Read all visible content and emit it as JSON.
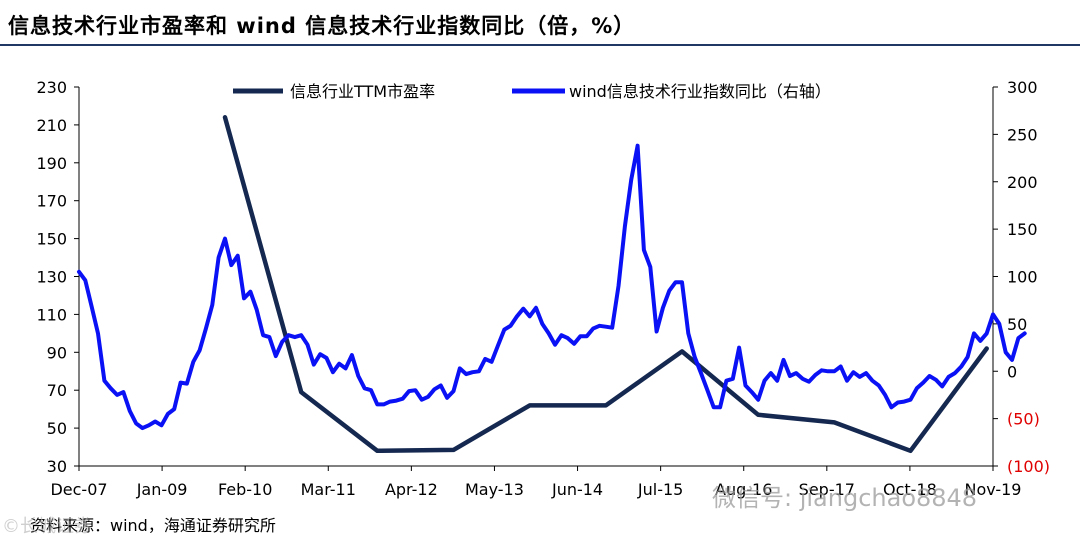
{
  "title": "信息技术行业市盈率和 wind 信息技术行业指数同比（倍，%）",
  "source": "资料来源：wind，海通证券研究所",
  "watermark": "微信号: jiangchao8848",
  "watermark_left": "©长城证券",
  "colors": {
    "pe": "#142850",
    "yoy": "#0a12f5",
    "negative": "#e00000",
    "rule": "#1f3864"
  },
  "chart_data": {
    "type": "line",
    "title": "信息技术行业市盈率和 wind 信息技术行业指数同比（倍，%）",
    "x_tick_labels": [
      "Dec-07",
      "Jan-09",
      "Feb-10",
      "Mar-11",
      "Apr-12",
      "May-13",
      "Jun-14",
      "Jul-15",
      "Aug-16",
      "Sep-17",
      "Oct-18",
      "Nov-19"
    ],
    "x_range": [
      0,
      144
    ],
    "left_axis": {
      "ticks": [
        30,
        50,
        70,
        90,
        110,
        130,
        150,
        170,
        190,
        210,
        230
      ],
      "tick_labels": [
        "30",
        "50",
        "70",
        "90",
        "110",
        "130",
        "150",
        "170",
        "190",
        "210",
        "230"
      ],
      "range": [
        30,
        230
      ]
    },
    "right_axis": {
      "ticks": [
        -100,
        -50,
        0,
        50,
        100,
        150,
        200,
        250,
        300
      ],
      "tick_labels": [
        "(100)",
        "(50)",
        "0",
        "50",
        "100",
        "150",
        "200",
        "250",
        "300"
      ],
      "range": [
        -100,
        300
      ]
    },
    "legend": {
      "placement": "top",
      "entries": [
        "信息行业TTM市盈率",
        "wind信息技术行业指数同比（右轴）"
      ]
    },
    "series": [
      {
        "name": "信息行业TTM市盈率",
        "axis": "left",
        "color": "#142850",
        "points": [
          [
            23,
            214
          ],
          [
            35,
            69
          ],
          [
            47,
            38
          ],
          [
            59,
            38.5
          ],
          [
            71,
            62
          ],
          [
            83,
            62
          ],
          [
            95,
            90.5
          ],
          [
            107,
            57
          ],
          [
            119,
            53
          ],
          [
            131,
            38
          ],
          [
            143,
            92
          ]
        ]
      },
      {
        "name": "wind信息技术行业指数同比（右轴）",
        "axis": "right",
        "color": "#0a12f5",
        "points": [
          [
            0,
            105
          ],
          [
            1,
            96
          ],
          [
            2,
            68
          ],
          [
            3,
            40
          ],
          [
            4,
            -10
          ],
          [
            5,
            -18
          ],
          [
            6,
            -25
          ],
          [
            7,
            -22
          ],
          [
            8,
            -42
          ],
          [
            9,
            -55
          ],
          [
            10,
            -60
          ],
          [
            11,
            -57
          ],
          [
            12,
            -53
          ],
          [
            13,
            -57
          ],
          [
            14,
            -45
          ],
          [
            15,
            -40
          ],
          [
            16,
            -12
          ],
          [
            17,
            -13
          ],
          [
            18,
            10
          ],
          [
            19,
            22
          ],
          [
            20,
            45
          ],
          [
            21,
            70
          ],
          [
            22,
            120
          ],
          [
            23,
            140
          ],
          [
            24,
            112
          ],
          [
            25,
            122
          ],
          [
            26,
            77
          ],
          [
            27,
            84
          ],
          [
            28,
            65
          ],
          [
            29,
            38
          ],
          [
            30,
            36
          ],
          [
            31,
            16
          ],
          [
            32,
            31
          ],
          [
            33,
            38
          ],
          [
            34,
            36
          ],
          [
            35,
            38
          ],
          [
            36,
            28
          ],
          [
            37,
            7
          ],
          [
            38,
            18
          ],
          [
            39,
            14
          ],
          [
            40,
            -1
          ],
          [
            41,
            8
          ],
          [
            42,
            3
          ],
          [
            43,
            17
          ],
          [
            44,
            -5
          ],
          [
            45,
            -18
          ],
          [
            46,
            -20
          ],
          [
            47,
            -35
          ],
          [
            48,
            -35
          ],
          [
            49,
            -32
          ],
          [
            50,
            -31
          ],
          [
            51,
            -29
          ],
          [
            52,
            -21
          ],
          [
            53,
            -20
          ],
          [
            54,
            -30
          ],
          [
            55,
            -27
          ],
          [
            56,
            -19
          ],
          [
            57,
            -15
          ],
          [
            58,
            -28
          ],
          [
            59,
            -21
          ],
          [
            60,
            3
          ],
          [
            61,
            -3
          ],
          [
            62,
            -1
          ],
          [
            63,
            0
          ],
          [
            64,
            13
          ],
          [
            65,
            10
          ],
          [
            66,
            27
          ],
          [
            67,
            44
          ],
          [
            68,
            48
          ],
          [
            69,
            58
          ],
          [
            70,
            66
          ],
          [
            71,
            58
          ],
          [
            72,
            67
          ],
          [
            73,
            50
          ],
          [
            74,
            40
          ],
          [
            75,
            28
          ],
          [
            76,
            38
          ],
          [
            77,
            35
          ],
          [
            78,
            29
          ],
          [
            79,
            37
          ],
          [
            80,
            37
          ],
          [
            81,
            45
          ],
          [
            82,
            48
          ],
          [
            83,
            47
          ],
          [
            84,
            46
          ],
          [
            85,
            90
          ],
          [
            86,
            153
          ],
          [
            87,
            202
          ],
          [
            88,
            238
          ],
          [
            89,
            128
          ],
          [
            90,
            110
          ],
          [
            91,
            42
          ],
          [
            92,
            67
          ],
          [
            93,
            85
          ],
          [
            94,
            94
          ],
          [
            95,
            94
          ],
          [
            96,
            40
          ],
          [
            97,
            15
          ],
          [
            98,
            -2
          ],
          [
            99,
            -20
          ],
          [
            100,
            -38
          ],
          [
            101,
            -38
          ],
          [
            102,
            -10
          ],
          [
            103,
            -8
          ],
          [
            104,
            25
          ],
          [
            105,
            -15
          ],
          [
            106,
            -22
          ],
          [
            107,
            -30
          ],
          [
            108,
            -10
          ],
          [
            109,
            -2
          ],
          [
            110,
            -10
          ],
          [
            111,
            12
          ],
          [
            112,
            -5
          ],
          [
            113,
            -2
          ],
          [
            114,
            -8
          ],
          [
            115,
            -11
          ],
          [
            116,
            -4
          ],
          [
            117,
            1
          ],
          [
            118,
            0
          ],
          [
            119,
            0
          ],
          [
            120,
            5
          ],
          [
            121,
            -10
          ],
          [
            122,
            -1
          ],
          [
            123,
            -6
          ],
          [
            124,
            -2
          ],
          [
            125,
            -10
          ],
          [
            126,
            -15
          ],
          [
            127,
            -25
          ],
          [
            128,
            -38
          ],
          [
            129,
            -33
          ],
          [
            130,
            -32
          ],
          [
            131,
            -30
          ],
          [
            132,
            -18
          ],
          [
            133,
            -12
          ],
          [
            134,
            -5
          ],
          [
            135,
            -9
          ],
          [
            136,
            -16
          ],
          [
            137,
            -6
          ],
          [
            138,
            -2
          ],
          [
            139,
            5
          ],
          [
            140,
            15
          ],
          [
            141,
            40
          ],
          [
            142,
            32
          ],
          [
            143,
            40
          ],
          [
            144,
            60
          ],
          [
            145,
            50
          ],
          [
            146,
            20
          ],
          [
            147,
            12
          ],
          [
            148,
            35
          ],
          [
            149,
            40
          ]
        ]
      }
    ]
  }
}
